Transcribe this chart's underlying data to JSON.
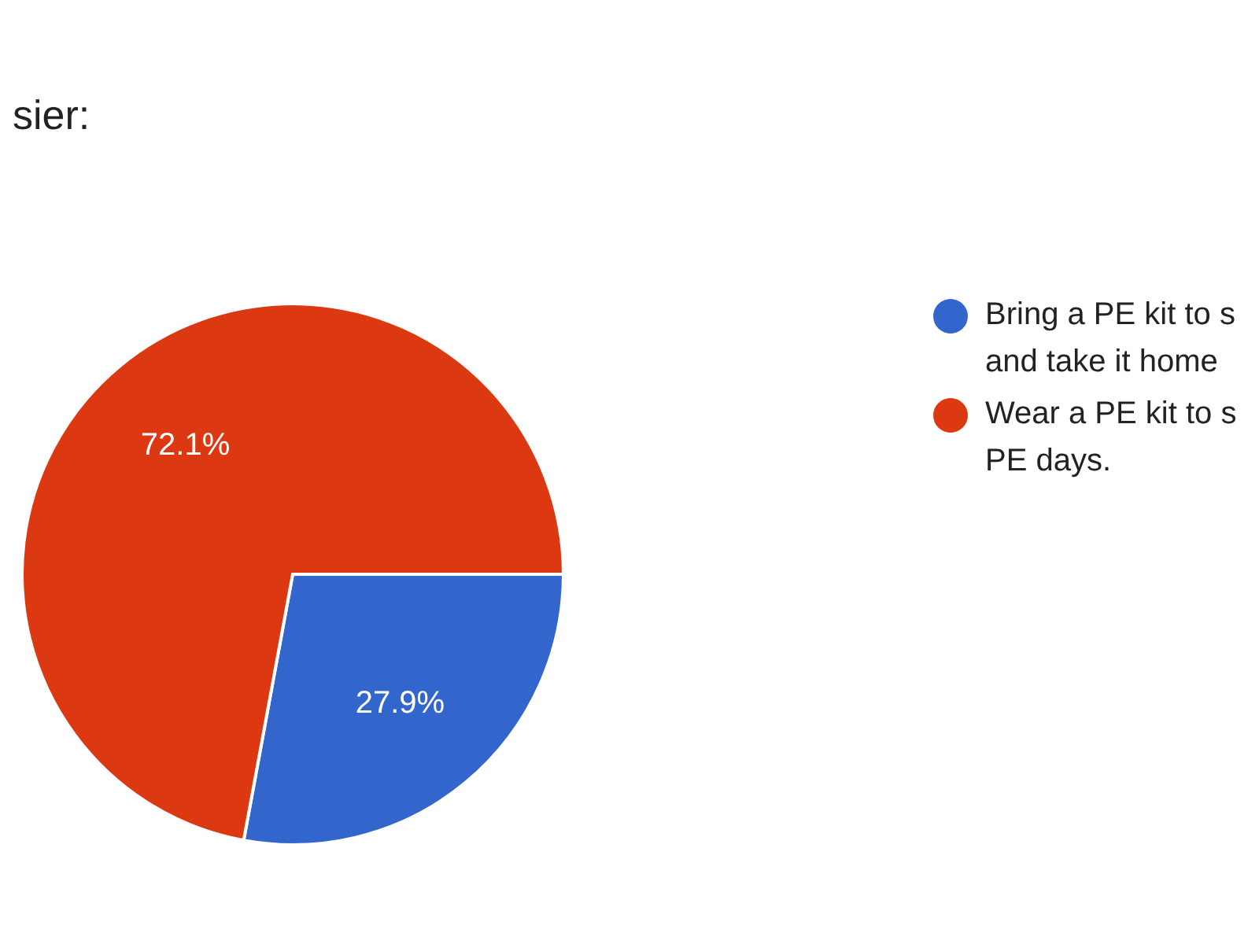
{
  "chart_data": {
    "type": "pie",
    "title": "sier:",
    "categories": [
      "Bring a PE kit to s\nand take it home",
      "Wear a PE kit to s\nPE days."
    ],
    "values": [
      27.9,
      72.1
    ],
    "colors": [
      "#3366cc",
      "#dc3912"
    ],
    "value_labels": [
      "27.9%",
      "72.1%"
    ],
    "legend": "right"
  }
}
